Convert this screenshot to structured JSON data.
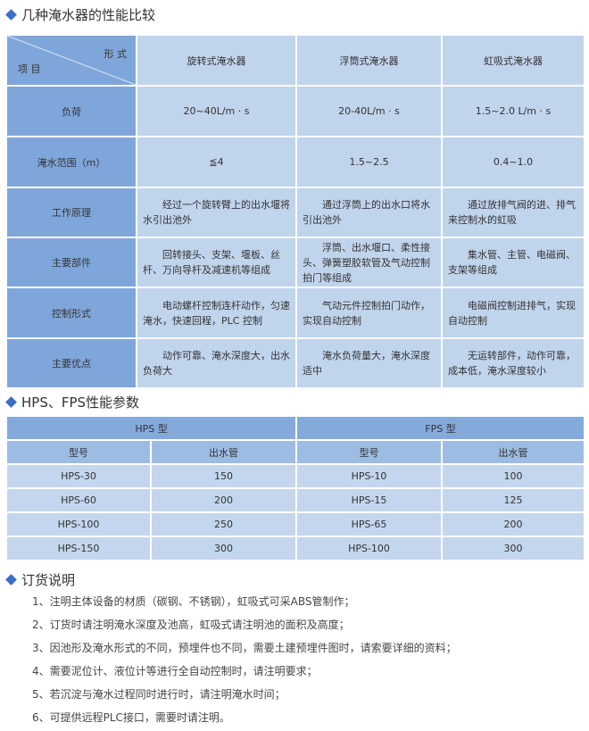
{
  "section1": {
    "title": "几种淹水器的性能比较"
  },
  "table1": {
    "corner_top": "形 式",
    "corner_bottom": "项 目",
    "columns": [
      "旋转式淹水器",
      "浮筒式淹水器",
      "虹吸式淹水器"
    ],
    "rows": [
      {
        "label": "负荷",
        "cells": [
          "20~40L/m · s",
          "20-40L/m · s",
          "1.5~2.0 L/m · s"
        ]
      },
      {
        "label": "淹水范围（m）",
        "cells": [
          "≦4",
          "1.5~2.5",
          "0.4~1.0"
        ]
      },
      {
        "label": "工作原理",
        "cells": [
          "经过一个旋转臂上的出水堰将水引出池外",
          "通过浮筒上的出水口将水引出池外",
          "通过放排气阀的进、排气来控制水的虹吸"
        ]
      },
      {
        "label": "主要部件",
        "cells": [
          "回转接头、支架、堰板、丝杆、万向导杆及减速机等组成",
          "浮筒、出水堰口、柔性接头、弹簧塑胶软管及气动控制拍门等组成",
          "集水管、主管、电磁阀、支架等组成"
        ]
      },
      {
        "label": "控制形式",
        "cells": [
          "电动螺杆控制连杆动作，匀速淹水，快速回程，PLC 控制",
          "气动元件控制拍门动作，实现自动控制",
          "电磁阀控制进排气，实现自动控制"
        ]
      },
      {
        "label": "主要优点",
        "cells": [
          "动作可靠、淹水深度大，出水负荷大",
          "淹水负荷量大，淹水深度适中",
          "无运转部件，动作可靠，成本低，淹水深度较小"
        ]
      }
    ]
  },
  "section2": {
    "title": "HPS、FPS性能参数"
  },
  "table2": {
    "groups": [
      "HPS 型",
      "FPS 型"
    ],
    "subheaders": [
      "型号",
      "出水管",
      "型号",
      "出水管"
    ],
    "rows": [
      [
        "HPS-30",
        "150",
        "HPS-10",
        "100"
      ],
      [
        "HPS-60",
        "200",
        "HPS-15",
        "125"
      ],
      [
        "HPS-100",
        "250",
        "HPS-65",
        "200"
      ],
      [
        "HPS-150",
        "300",
        "HPS-100",
        "300"
      ]
    ]
  },
  "section3": {
    "title": "订货说明",
    "items": [
      "1、注明主体设备的材质（碳钢、不锈钢），虹吸式可采ABS管制作；",
      "2、订货时请注明淹水深度及池高，虹吸式请注明池的面积及高度；",
      "3、因池形及淹水形式的不同，预埋件也不同，需要土建预埋件图时，请索要详细的资料；",
      "4、需要泥位计、液位计等进行全自动控制时，请注明要求；",
      "5、若沉淀与淹水过程同时进行时，请注明淹水时间；",
      "6、可提供远程PLC接口，需要时请注明。"
    ]
  },
  "colors": {
    "accent": "#3a6fc7",
    "header_cell": "#7fa6da",
    "data_cell": "#c0d4ec"
  }
}
